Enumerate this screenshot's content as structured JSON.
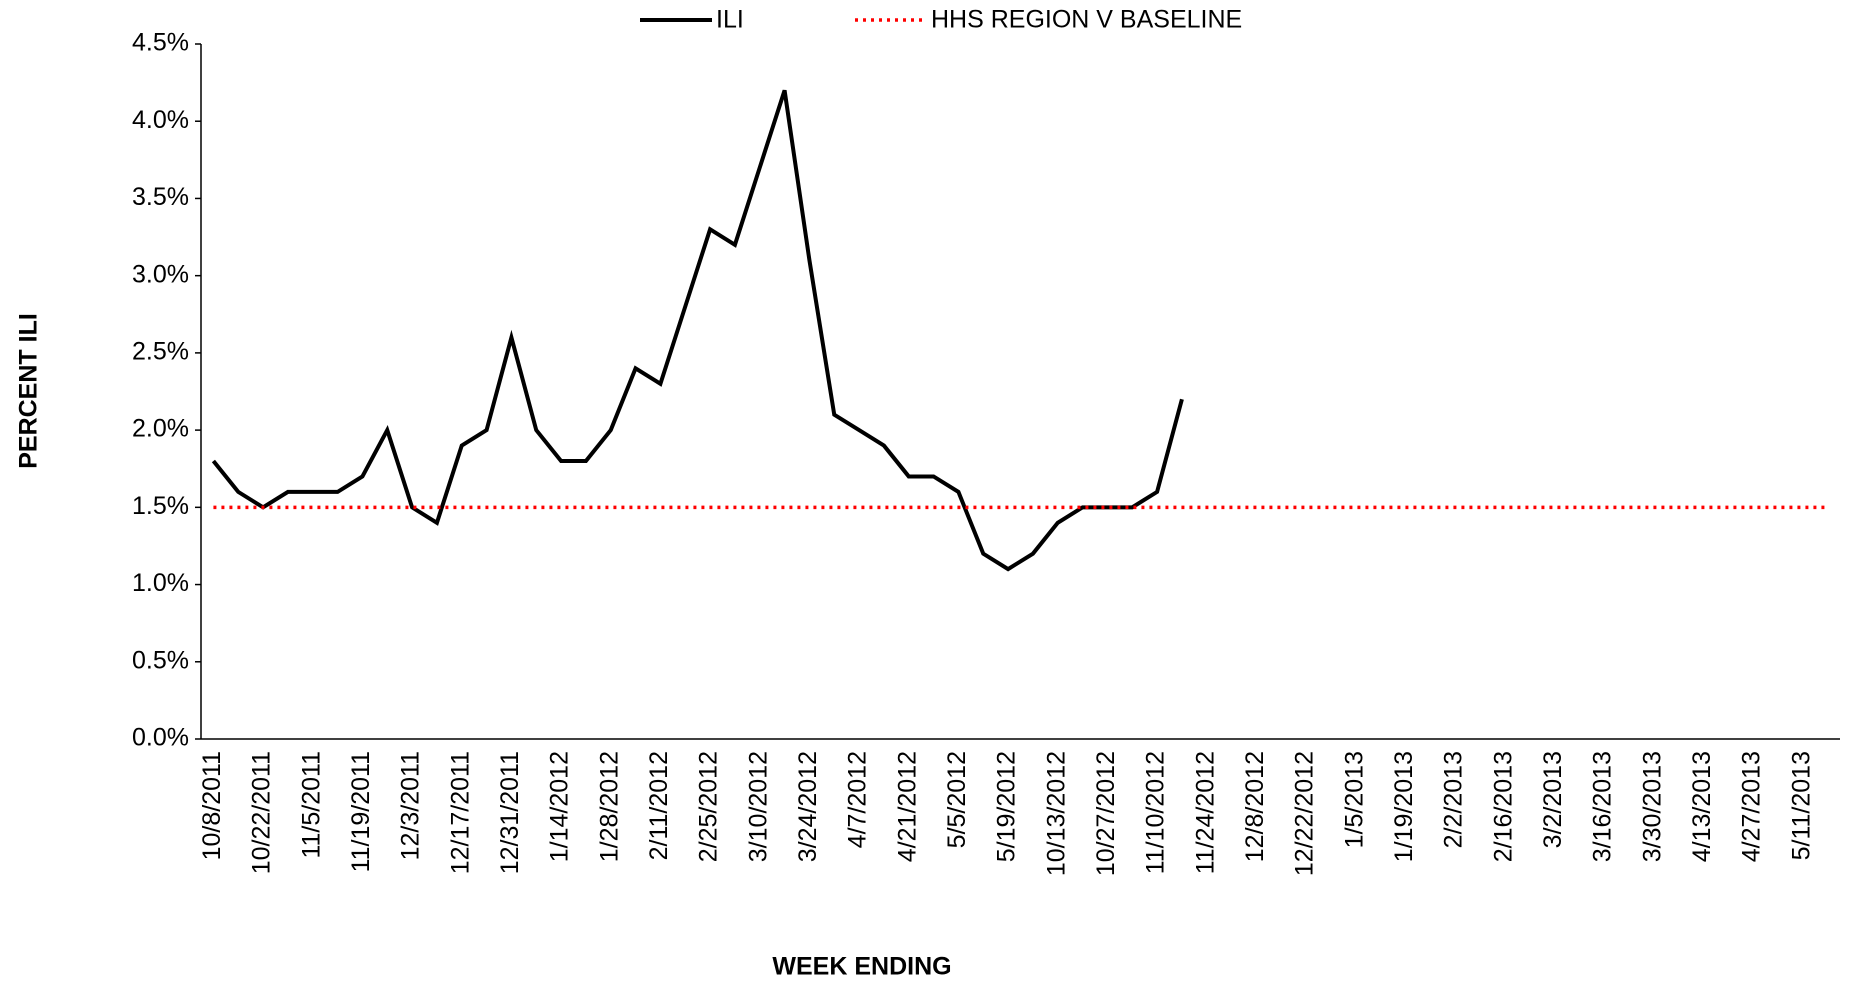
{
  "chart_data": {
    "type": "line",
    "x_label": "WEEK ENDING",
    "y_label": "PERCENT ILI",
    "categories": [
      "10/8/2011",
      null,
      "10/22/2011",
      null,
      "11/5/2011",
      null,
      "11/19/2011",
      null,
      "12/3/2011",
      null,
      "12/17/2011",
      null,
      "12/31/2011",
      null,
      "1/14/2012",
      null,
      "1/28/2012",
      null,
      "2/11/2012",
      null,
      "2/25/2012",
      null,
      "3/10/2012",
      null,
      "3/24/2012",
      null,
      "4/7/2012",
      null,
      "4/21/2012",
      null,
      "5/5/2012",
      null,
      "5/19/2012",
      null,
      "10/13/2012",
      null,
      "10/27/2012",
      null,
      "11/10/2012",
      null,
      "11/24/2012",
      null,
      "12/8/2012",
      null,
      "12/22/2012",
      null,
      "1/5/2013",
      null,
      "1/19/2013",
      null,
      "2/2/2013",
      null,
      "2/16/2013",
      null,
      "3/2/2013",
      null,
      "3/16/2013",
      null,
      "3/30/2013",
      null,
      "4/13/2013",
      null,
      "4/27/2013",
      null,
      "5/11/2013",
      null
    ],
    "series": [
      {
        "name": "ILI",
        "color": "#000000",
        "style": "solid",
        "values": [
          1.8,
          1.6,
          1.5,
          1.6,
          1.6,
          1.6,
          1.7,
          2.0,
          1.5,
          1.4,
          1.9,
          2.0,
          2.6,
          2.0,
          1.8,
          1.8,
          2.0,
          2.4,
          2.3,
          2.8,
          3.3,
          3.2,
          3.7,
          4.2,
          3.1,
          2.1,
          2.0,
          1.9,
          1.7,
          1.7,
          1.6,
          1.2,
          1.1,
          1.2,
          1.4,
          1.5,
          1.5,
          1.5,
          1.6,
          2.2,
          null,
          null,
          null,
          null,
          null,
          null,
          null,
          null,
          null,
          null,
          null,
          null,
          null,
          null,
          null,
          null,
          null,
          null,
          null,
          null,
          null,
          null,
          null,
          null,
          null,
          null
        ]
      },
      {
        "name": "HHS REGION V BASELINE",
        "color": "#ff0000",
        "style": "dotted",
        "values": [
          1.5,
          1.5,
          1.5,
          1.5,
          1.5,
          1.5,
          1.5,
          1.5,
          1.5,
          1.5,
          1.5,
          1.5,
          1.5,
          1.5,
          1.5,
          1.5,
          1.5,
          1.5,
          1.5,
          1.5,
          1.5,
          1.5,
          1.5,
          1.5,
          1.5,
          1.5,
          1.5,
          1.5,
          1.5,
          1.5,
          1.5,
          1.5,
          1.5,
          1.5,
          1.5,
          1.5,
          1.5,
          1.5,
          1.5,
          1.5,
          1.5,
          1.5,
          1.5,
          1.5,
          1.5,
          1.5,
          1.5,
          1.5,
          1.5,
          1.5,
          1.5,
          1.5,
          1.5,
          1.5,
          1.5,
          1.5,
          1.5,
          1.5,
          1.5,
          1.5,
          1.5,
          1.5,
          1.5,
          1.5,
          1.5,
          1.5
        ]
      }
    ],
    "ylim": [
      0,
      4.5
    ],
    "yticks": [
      {
        "value": 0,
        "label": "0.0%"
      },
      {
        "value": 0.5,
        "label": "0.5%"
      },
      {
        "value": 1,
        "label": "1.0%"
      },
      {
        "value": 1.5,
        "label": "1.5%"
      },
      {
        "value": 2,
        "label": "2.0%"
      },
      {
        "value": 2.5,
        "label": "2.5%"
      },
      {
        "value": 3,
        "label": "3.0%"
      },
      {
        "value": 3.5,
        "label": "3.5%"
      },
      {
        "value": 4,
        "label": "4.0%"
      },
      {
        "value": 4.5,
        "label": "4.5%"
      }
    ],
    "grid": false,
    "legend": "top"
  }
}
